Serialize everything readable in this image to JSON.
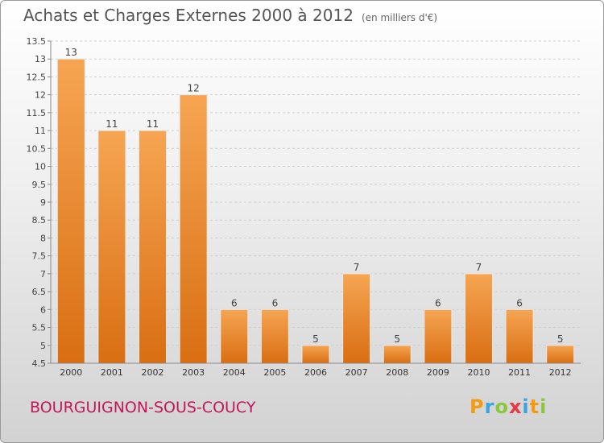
{
  "title": "Achats et Charges Externes 2000 à 2012",
  "unit": "(en milliers d'€)",
  "commune": "BOURGUIGNON-SOUS-COUCY",
  "logo": {
    "letters": [
      "P",
      "r",
      "o",
      "x",
      "i",
      "t",
      "i"
    ],
    "colors": [
      "#f39c12",
      "#3aa3e0",
      "#8cc63f",
      "#e63946",
      "#3aa3e0",
      "#f39c12",
      "#8cc63f"
    ]
  },
  "colors": {
    "bar_top": "#f6a552",
    "bar_bottom": "#d96e12",
    "axis": "#888888",
    "grid": "#cfcfcf"
  },
  "chart_data": {
    "type": "bar",
    "categories": [
      "2000",
      "2001",
      "2002",
      "2003",
      "2004",
      "2005",
      "2006",
      "2007",
      "2008",
      "2009",
      "2010",
      "2011",
      "2012"
    ],
    "values": [
      13,
      11,
      11,
      12,
      6,
      6,
      5,
      7,
      5,
      6,
      7,
      6,
      5
    ],
    "data_labels": [
      "13",
      "11",
      "11",
      "12",
      "6",
      "6",
      "5",
      "7",
      "5",
      "6",
      "7",
      "6",
      "5"
    ],
    "ylim": [
      4.5,
      13.5
    ],
    "yticks": [
      4.5,
      5,
      5.5,
      6,
      6.5,
      7,
      7.5,
      8,
      8.5,
      9,
      9.5,
      10,
      10.5,
      11,
      11.5,
      12,
      12.5,
      13,
      13.5
    ],
    "ytick_labels": [
      "4.5",
      "5",
      "5.5",
      "6",
      "6.5",
      "7",
      "7.5",
      "8",
      "8.5",
      "9",
      "9.5",
      "10",
      "10.5",
      "11",
      "11.5",
      "12",
      "12.5",
      "13",
      "13.5"
    ],
    "grid": true,
    "xlabel": "",
    "ylabel": ""
  }
}
